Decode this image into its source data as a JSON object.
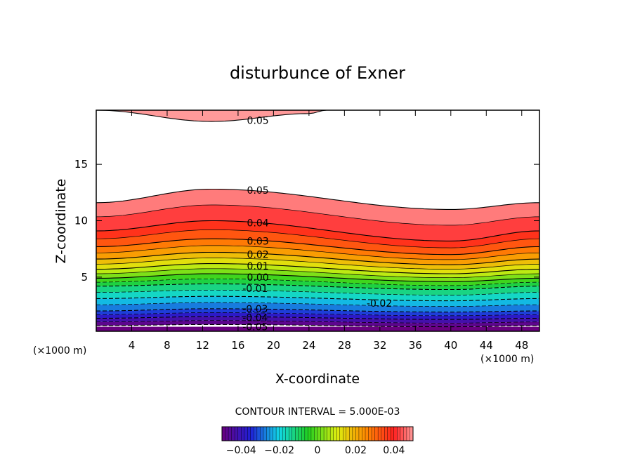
{
  "chart_data": {
    "type": "contour",
    "title": "disturbunce of Exner",
    "xlabel": "X-coordinate",
    "ylabel": "Z-coordinate",
    "x_unit": "(×1000 m)",
    "xlim": [
      0,
      50
    ],
    "ylim": [
      0.2,
      19.8
    ],
    "x_ticks": [
      4,
      8,
      12,
      16,
      20,
      24,
      28,
      32,
      36,
      40,
      44,
      48
    ],
    "y_ticks": [
      5,
      10,
      15
    ],
    "contour_interval_label": "CONTOUR INTERVAL = 5.000E-03",
    "contour_interval": 0.005,
    "levels": [
      -0.05,
      -0.045,
      -0.04,
      -0.035,
      -0.03,
      -0.025,
      -0.02,
      -0.015,
      -0.01,
      -0.005,
      0.0,
      0.005,
      0.01,
      0.015,
      0.02,
      0.025,
      0.03,
      0.035,
      0.04,
      0.045,
      0.05
    ],
    "contour_level_heights": [
      {
        "level": -0.05,
        "z_at_x": {
          "0": 0.7,
          "13": 0.8,
          "40": 0.6,
          "50": 0.7
        }
      },
      {
        "level": -0.03,
        "z_at_x": {
          "0": 2.0,
          "13": 2.2,
          "40": 1.9,
          "50": 2.0
        }
      },
      {
        "level": -0.01,
        "z_at_x": {
          "0": 4.2,
          "13": 4.4,
          "40": 3.9,
          "50": 4.2
        }
      },
      {
        "level": 0.0,
        "z_at_x": {
          "0": 4.9,
          "13": 5.3,
          "40": 4.6,
          "50": 4.9
        }
      },
      {
        "level": 0.01,
        "z_at_x": {
          "0": 5.7,
          "13": 6.2,
          "40": 5.3,
          "50": 5.7
        }
      },
      {
        "level": 0.02,
        "z_at_x": {
          "0": 6.6,
          "13": 7.2,
          "40": 6.1,
          "50": 6.6
        }
      },
      {
        "level": 0.03,
        "z_at_x": {
          "0": 7.7,
          "13": 8.4,
          "40": 7.0,
          "50": 7.7
        }
      },
      {
        "level": 0.04,
        "z_at_x": {
          "0": 9.1,
          "13": 10.0,
          "40": 8.2,
          "50": 9.1
        }
      },
      {
        "level": 0.05,
        "z_at_x": {
          "0": 11.6,
          "13": 12.8,
          "40": 11.0,
          "50": 11.6
        }
      }
    ],
    "upper_contour_0_05": {
      "z_at_x": {
        "0": 19.8,
        "13": 18.8,
        "24": 19.5,
        "26": 19.8
      }
    },
    "labels": [
      {
        "text": "0.05",
        "x": 17,
        "z": 18.9
      },
      {
        "text": "0.05",
        "x": 17,
        "z": 12.7
      },
      {
        "text": "0.04",
        "x": 17,
        "z": 9.8
      },
      {
        "text": "0.03",
        "x": 17,
        "z": 8.2
      },
      {
        "text": "0.02",
        "x": 17,
        "z": 7.0
      },
      {
        "text": "0.01",
        "x": 17,
        "z": 6.0
      },
      {
        "text": "0.00",
        "x": 17,
        "z": 5.0
      },
      {
        "text": "-0.01",
        "x": 16.5,
        "z": 4.0
      },
      {
        "text": "-0.02",
        "x": 30.5,
        "z": 2.7
      },
      {
        "text": "-0.03",
        "x": 16.5,
        "z": 2.2
      },
      {
        "text": "-0.04",
        "x": 16.5,
        "z": 1.4
      },
      {
        "text": "-0.05",
        "x": 16.5,
        "z": 0.6
      }
    ],
    "colorbar": {
      "range": [
        -0.05,
        0.05
      ],
      "tick_values": [
        -0.04,
        -0.02,
        0,
        0.02,
        0.04
      ],
      "tick_labels": [
        "−0.04",
        "−0.02",
        "0",
        "0.02",
        "0.04"
      ]
    },
    "colors": {
      "purple": "#6a0080",
      "blue": "#1f1fd6",
      "cyan": "#11d8e6",
      "green": "#20d020",
      "yellow": "#dcef10",
      "orange": "#ff8c00",
      "red": "#ff2020",
      "pink": "#ff9a9a"
    }
  }
}
